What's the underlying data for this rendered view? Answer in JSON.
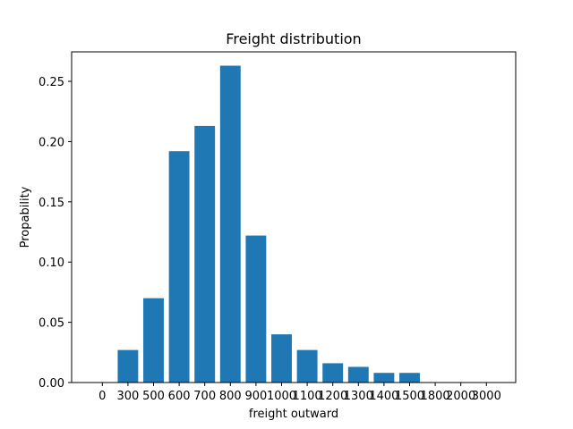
{
  "chart_data": {
    "type": "bar",
    "title": "Freight distribution",
    "xlabel": "freight outward",
    "ylabel": "Propability",
    "categories": [
      "0",
      "300",
      "500",
      "600",
      "700",
      "800",
      "900",
      "1000",
      "1100",
      "1200",
      "1300",
      "1400",
      "1500",
      "1800",
      "2000",
      "3000"
    ],
    "values": [
      0.0,
      0.027,
      0.07,
      0.192,
      0.213,
      0.263,
      0.122,
      0.04,
      0.027,
      0.016,
      0.013,
      0.008,
      0.008,
      0.0,
      0.0,
      0.0
    ],
    "ylim": [
      0,
      0.2745
    ],
    "yticks": [
      0.0,
      0.05,
      0.1,
      0.15,
      0.2,
      0.25
    ],
    "ytick_labels": [
      "0.00",
      "0.05",
      "0.10",
      "0.15",
      "0.20",
      "0.25"
    ],
    "grid": false,
    "bar_color": "#1f77b4"
  }
}
